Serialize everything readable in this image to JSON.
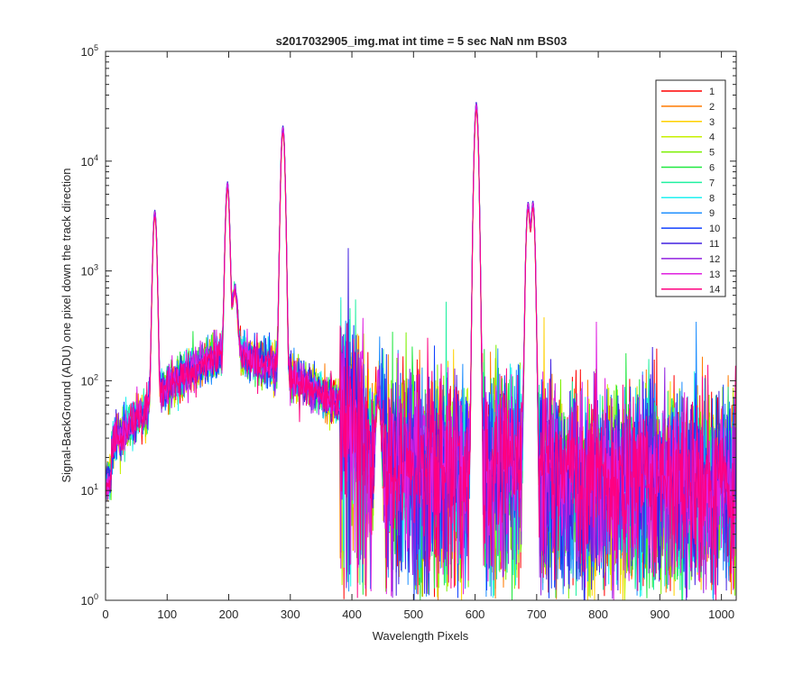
{
  "chart_data": {
    "type": "line",
    "title": "s2017032905_img.mat int time = 5 sec  NaN nm BS03",
    "xlabel": "Wavelength Pixels",
    "ylabel": "Signal-BackGround (ADU) one pixel down the track direction",
    "xlim": [
      0,
      1024
    ],
    "ylim": [
      1,
      100000
    ],
    "yscale": "log",
    "xticks": [
      0,
      100,
      200,
      300,
      400,
      500,
      600,
      700,
      800,
      900,
      1000
    ],
    "xtick_labels": [
      "0",
      "100",
      "200",
      "300",
      "400",
      "500",
      "600",
      "700",
      "800",
      "900",
      "1000"
    ],
    "yticks": [
      1,
      10,
      100,
      1000,
      10000,
      100000
    ],
    "ytick_base": "10",
    "ytick_exponents": [
      "0",
      "1",
      "2",
      "3",
      "4",
      "5"
    ],
    "grid": false,
    "legend_position": "top-right",
    "peaks": [
      {
        "x": 80,
        "y": 3300
      },
      {
        "x": 198,
        "y": 5900
      },
      {
        "x": 210,
        "y": 500
      },
      {
        "x": 288,
        "y": 19500
      },
      {
        "x": 443,
        "y": 60
      },
      {
        "x": 602,
        "y": 32000
      },
      {
        "x": 686,
        "y": 3900
      },
      {
        "x": 694,
        "y": 4000
      }
    ],
    "series": [
      {
        "name": "1",
        "color": "#ff0000"
      },
      {
        "name": "2",
        "color": "#ff7a00"
      },
      {
        "name": "3",
        "color": "#ffd000"
      },
      {
        "name": "4",
        "color": "#c8f000"
      },
      {
        "name": "5",
        "color": "#7cf000"
      },
      {
        "name": "6",
        "color": "#20e840"
      },
      {
        "name": "7",
        "color": "#20f0a0"
      },
      {
        "name": "8",
        "color": "#20f0f0"
      },
      {
        "name": "9",
        "color": "#2090ff"
      },
      {
        "name": "10",
        "color": "#1040ff"
      },
      {
        "name": "11",
        "color": "#4020e0"
      },
      {
        "name": "12",
        "color": "#9020e0"
      },
      {
        "name": "13",
        "color": "#e020e0"
      },
      {
        "name": "14",
        "color": "#ff0080"
      }
    ]
  }
}
